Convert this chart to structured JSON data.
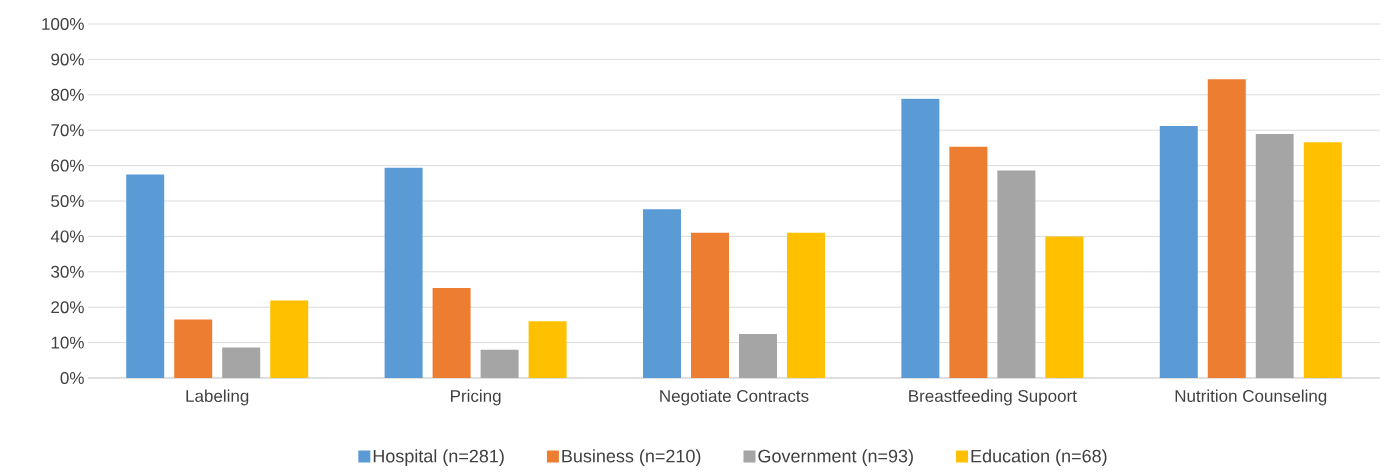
{
  "chart_data": {
    "type": "bar",
    "categories": [
      "Labeling",
      "Pricing",
      "Negotiate Contracts",
      "Breastfeeding Supoort",
      "Nutrition Counseling"
    ],
    "series": [
      {
        "name": "Hospital (n=281)",
        "color": "#5b9bd5",
        "values": [
          57.5,
          59.4,
          47.7,
          78.9,
          71.2
        ]
      },
      {
        "name": "Business (n=210)",
        "color": "#ed7d31",
        "values": [
          16.5,
          25.4,
          41.0,
          65.3,
          84.4
        ]
      },
      {
        "name": "Government (n=93)",
        "color": "#a5a5a5",
        "values": [
          8.6,
          8.0,
          12.4,
          58.6,
          68.9
        ]
      },
      {
        "name": "Education (n=68)",
        "color": "#ffc000",
        "values": [
          21.9,
          16.0,
          41.0,
          40.0,
          66.6
        ]
      }
    ],
    "ylim": [
      0,
      100
    ],
    "yticks": [
      {
        "value": 0,
        "label": "0%"
      },
      {
        "value": 10,
        "label": "10%"
      },
      {
        "value": 20,
        "label": "20%"
      },
      {
        "value": 30,
        "label": "30%"
      },
      {
        "value": 40,
        "label": "40%"
      },
      {
        "value": 50,
        "label": "50%"
      },
      {
        "value": 60,
        "label": "60%"
      },
      {
        "value": 70,
        "label": "70%"
      },
      {
        "value": 80,
        "label": "80%"
      },
      {
        "value": 90,
        "label": "90%"
      },
      {
        "value": 100,
        "label": "100%"
      }
    ],
    "grid": "y",
    "legend": "bottom"
  }
}
